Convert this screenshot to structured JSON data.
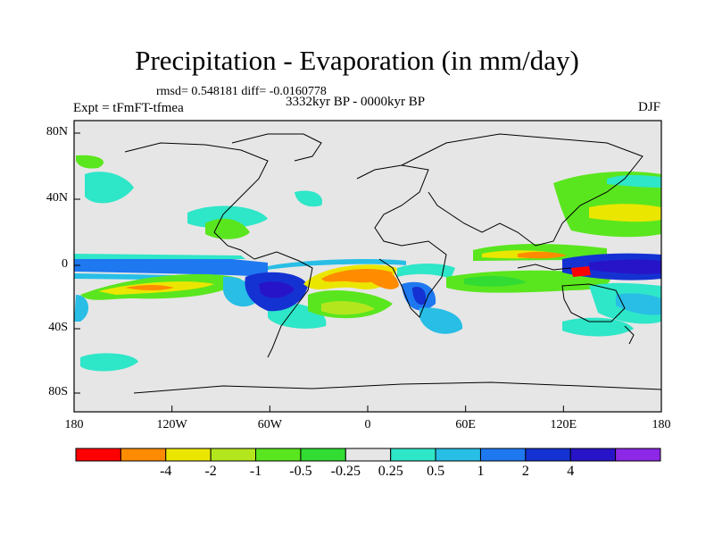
{
  "title": "Precipitation - Evaporation (in mm/day)",
  "stats": "rmsd= 0.548181 diff= -0.0160778",
  "period": "3332kyr BP - 0000kyr BP",
  "experiment": "Expt = tFmFT-tfmea",
  "season": "DJF",
  "lat_labels": [
    "80N",
    "40N",
    "0",
    "40S",
    "80S"
  ],
  "lon_labels": [
    "180",
    "120W",
    "60W",
    "0",
    "60E",
    "120E",
    "180"
  ],
  "colorbar": {
    "colors": [
      "#ff0000",
      "#ff8c00",
      "#ebe600",
      "#b4e61e",
      "#5ae61e",
      "#32dc32",
      "#e6e6e6",
      "#2ee6c8",
      "#28bee6",
      "#1e78f0",
      "#1432d2",
      "#2814c8",
      "#8c28e6"
    ],
    "labels": [
      "-4",
      "-2",
      "-1",
      "-0.5",
      "-0.25",
      "0.25",
      "0.5",
      "1",
      "2",
      "4"
    ]
  },
  "background_color": "#e6e6e6"
}
